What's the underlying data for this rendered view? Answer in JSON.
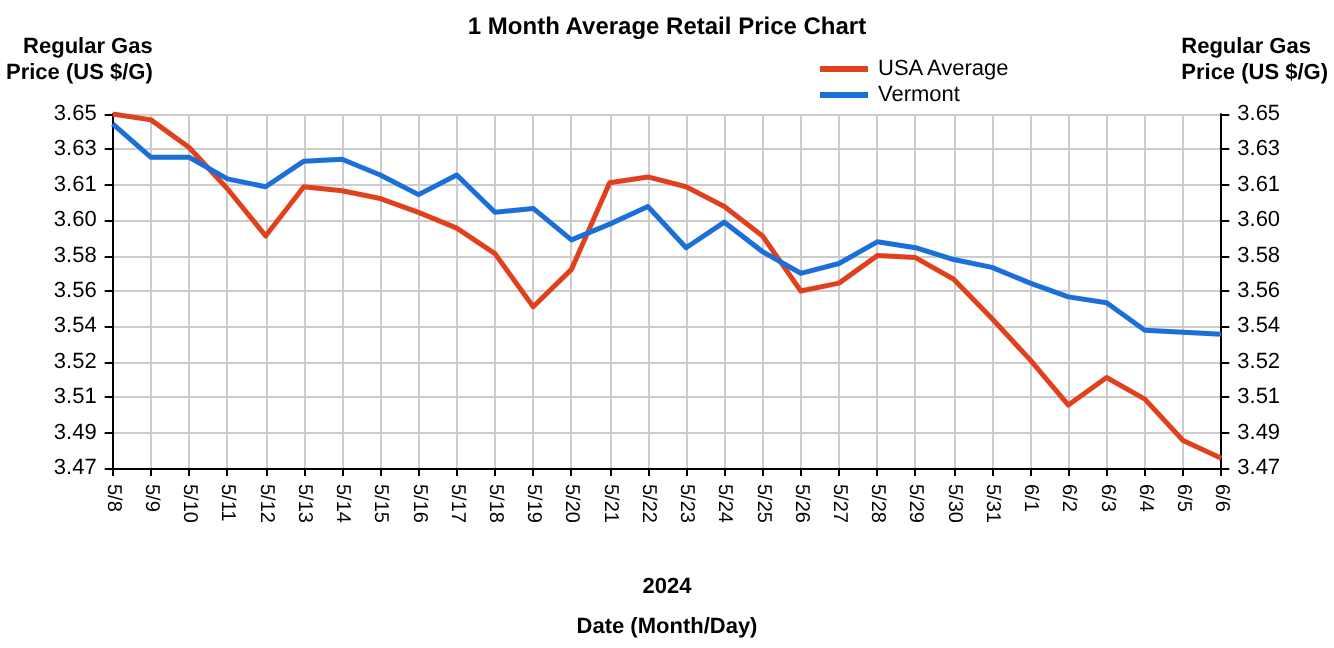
{
  "chart_data": {
    "type": "line",
    "title": "1 Month Average Retail Price Chart",
    "xlabel": "Date (Month/Day)",
    "ylabel": "Regular Gas Price (US $/G)",
    "y2label": "Regular Gas Price (US $/G)",
    "annotations": [
      "2024"
    ],
    "categories": [
      "5/8",
      "5/9",
      "5/10",
      "5/11",
      "5/12",
      "5/13",
      "5/14",
      "5/15",
      "5/16",
      "5/17",
      "5/18",
      "5/19",
      "5/20",
      "5/21",
      "5/22",
      "5/23",
      "5/24",
      "5/25",
      "5/26",
      "5/27",
      "5/28",
      "5/29",
      "5/30",
      "5/31",
      "6/1",
      "6/2",
      "6/3",
      "6/4",
      "6/5",
      "6/6"
    ],
    "series": [
      {
        "name": "USA Average",
        "color": "#e0401c",
        "values": [
          3.65,
          3.647,
          3.633,
          3.612,
          3.588,
          3.613,
          3.611,
          3.607,
          3.6,
          3.592,
          3.579,
          3.552,
          3.571,
          3.615,
          3.618,
          3.613,
          3.603,
          3.588,
          3.56,
          3.564,
          3.578,
          3.577,
          3.566,
          3.546,
          3.525,
          3.502,
          3.516,
          3.505,
          3.484,
          3.475
        ]
      },
      {
        "name": "Vermont",
        "color": "#1a6fd8",
        "values": [
          3.645,
          3.628,
          3.628,
          3.617,
          3.613,
          3.626,
          3.627,
          3.619,
          3.609,
          3.619,
          3.6,
          3.602,
          3.586,
          3.594,
          3.603,
          3.582,
          3.595,
          3.58,
          3.569,
          3.574,
          3.585,
          3.582,
          3.576,
          3.572,
          3.564,
          3.557,
          3.554,
          3.54,
          3.539,
          3.538
        ]
      }
    ],
    "ylim": [
      3.47,
      3.65
    ],
    "yticks": [
      3.47,
      {
        "value": 3.488,
        "label": "3.49"
      },
      {
        "value": 3.506,
        "label": "3.51"
      },
      {
        "value": 3.524,
        "label": "3.52"
      },
      {
        "value": 3.542,
        "label": "3.54"
      },
      3.56,
      {
        "value": 3.578,
        "label": "3.58"
      },
      {
        "value": 3.596,
        "label": "3.60"
      },
      {
        "value": 3.614,
        "label": "3.61"
      },
      {
        "value": 3.632,
        "label": "3.63"
      },
      3.65
    ],
    "y2lim": [
      3.47,
      3.65
    ],
    "y2ticks": [
      3.47,
      {
        "value": 3.488,
        "label": "3.49"
      },
      {
        "value": 3.506,
        "label": "3.51"
      },
      {
        "value": 3.524,
        "label": "3.52"
      },
      {
        "value": 3.542,
        "label": "3.54"
      },
      3.56,
      {
        "value": 3.578,
        "label": "3.58"
      },
      {
        "value": 3.596,
        "label": "3.60"
      },
      {
        "value": 3.614,
        "label": "3.61"
      },
      {
        "value": 3.632,
        "label": "3.63"
      },
      3.65
    ],
    "grid": true,
    "legend": "top right",
    "marker": "none",
    "line_style": "solid"
  }
}
